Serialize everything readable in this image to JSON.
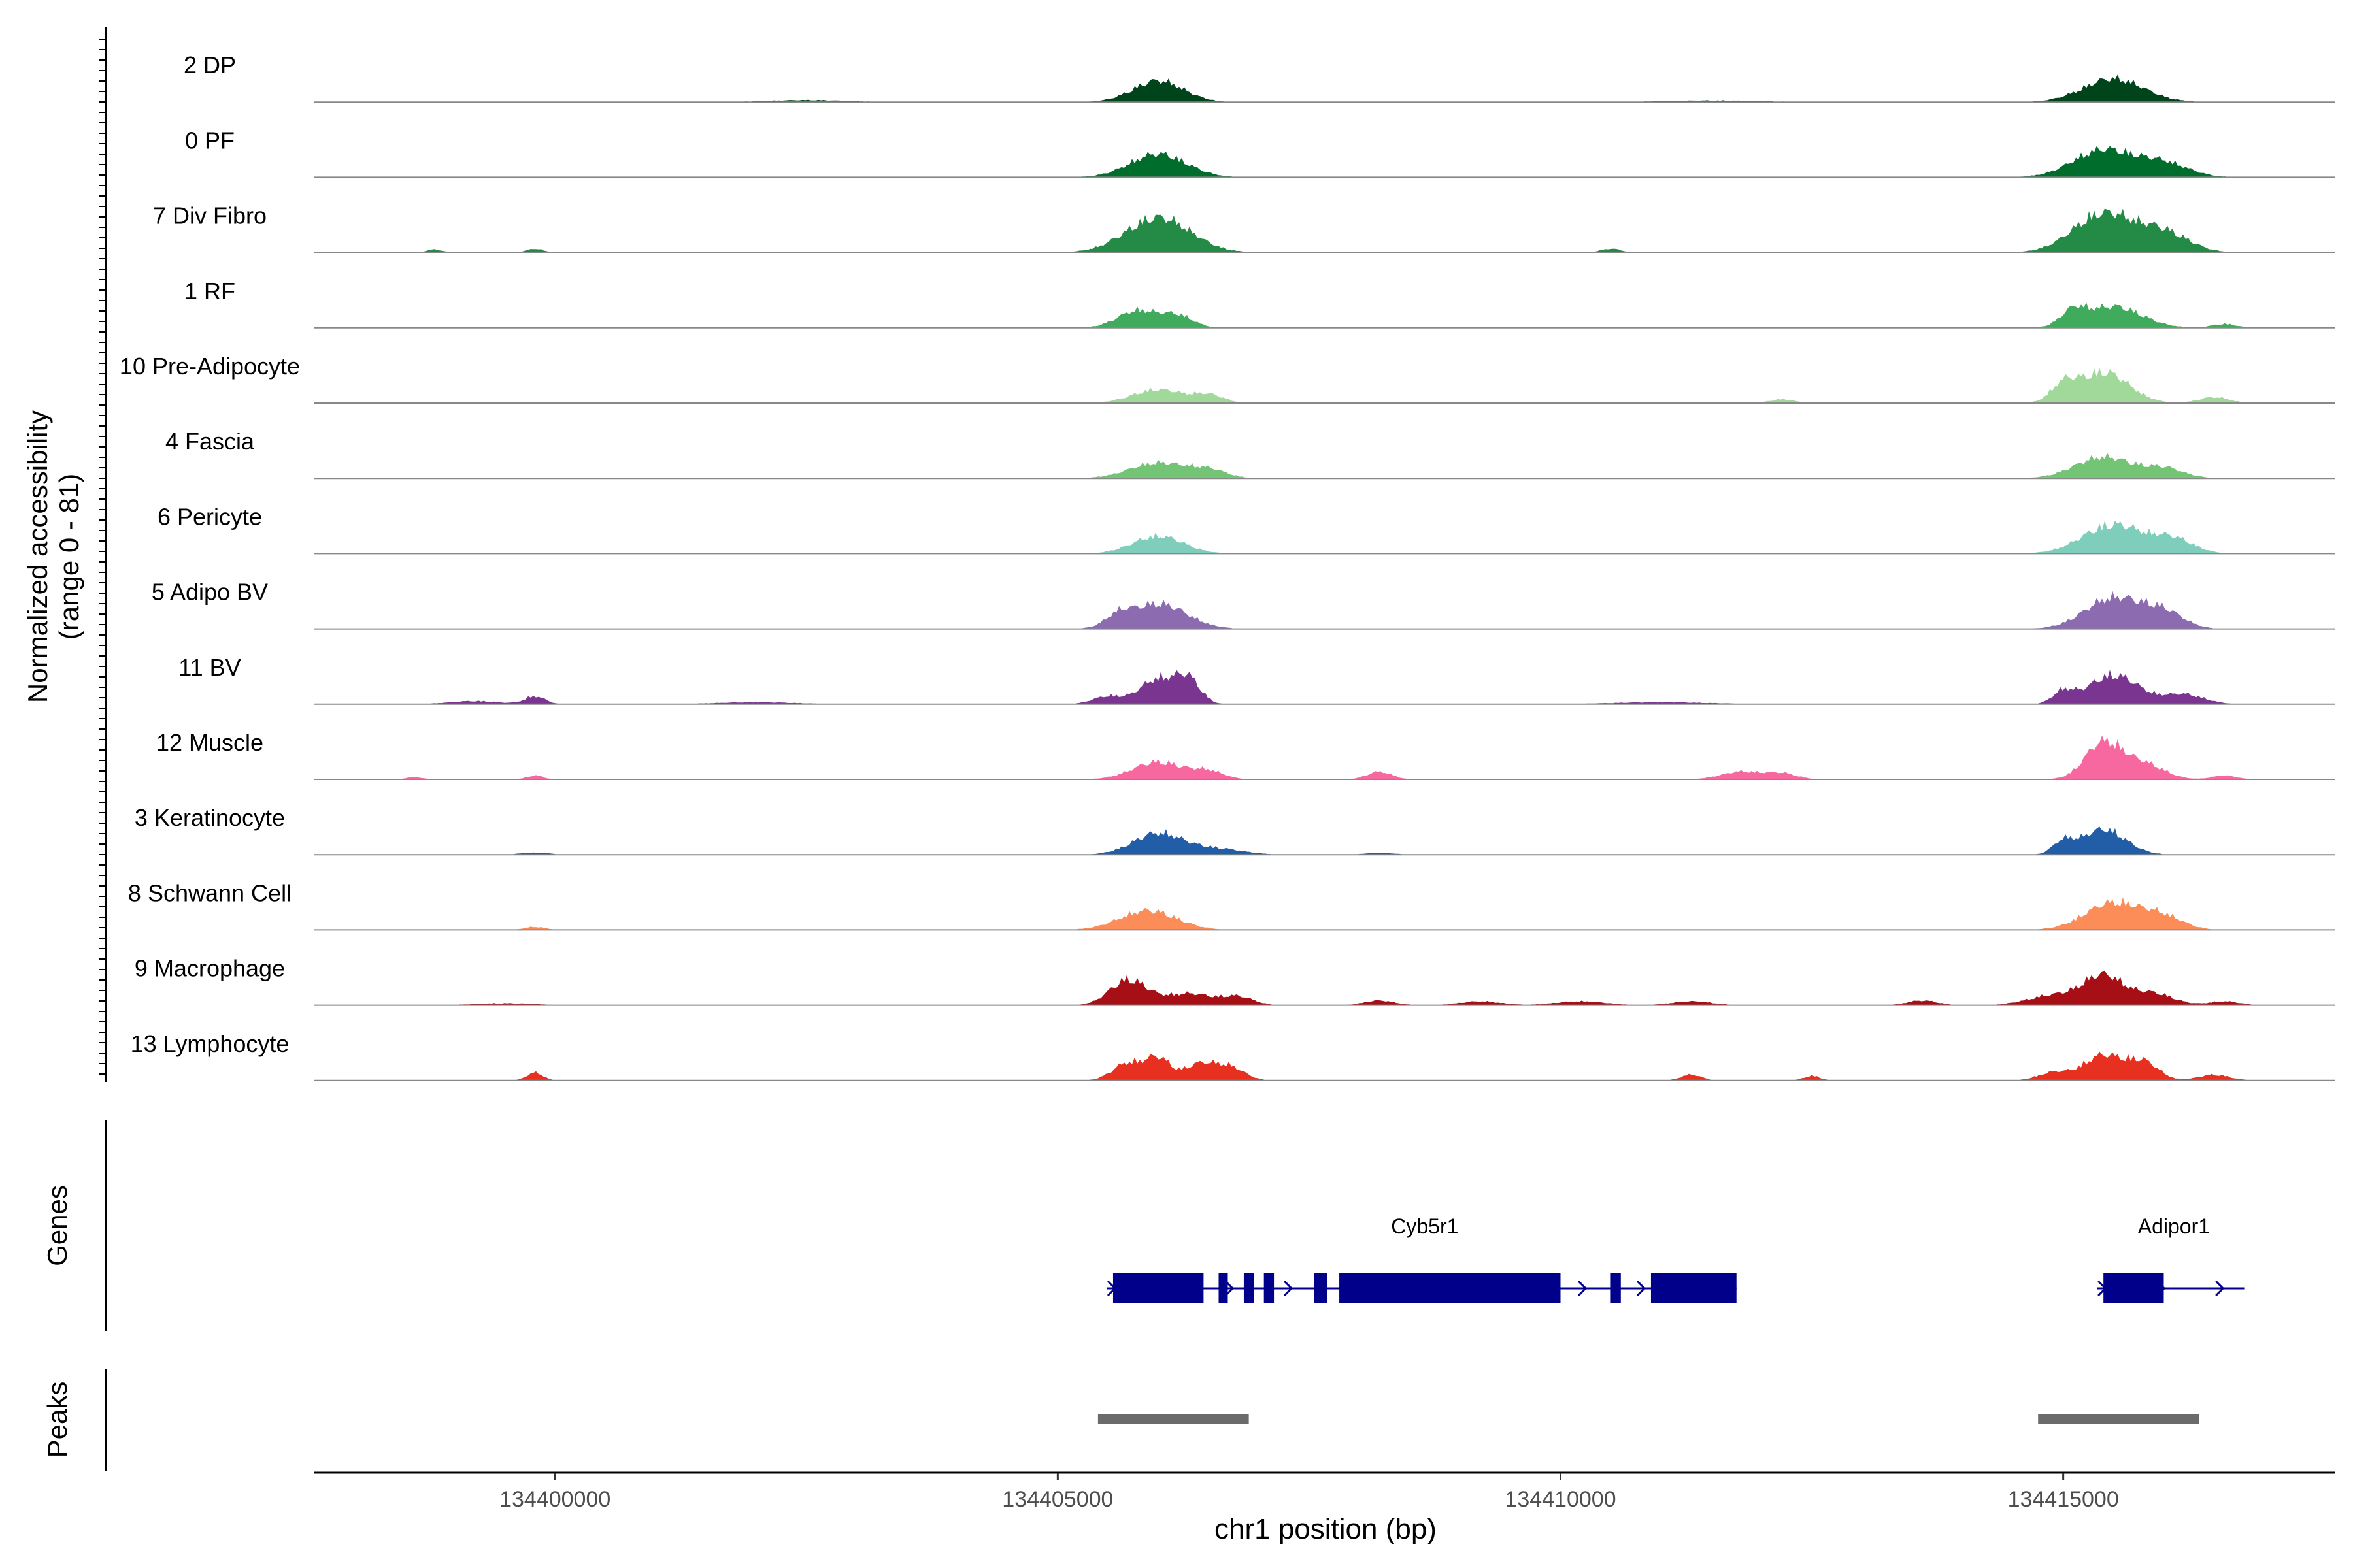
{
  "chart_data": {
    "type": "area",
    "subtype": "coverage-track",
    "ylabel_line1": "Normalized accessibility",
    "ylabel_line2": "(range 0 - 81)",
    "xlabel": "chr1 position (bp)",
    "xlim": [
      134397600,
      134417700
    ],
    "xticks": [
      134400000,
      134405000,
      134410000,
      134415000
    ],
    "xtick_labels": [
      "134400000",
      "134405000",
      "134410000",
      "134415000"
    ],
    "grid": false,
    "tracks": [
      {
        "label": "2 DP",
        "color": "#00441b",
        "peaks": [
          [
            134406000,
            0.55,
            250
          ],
          [
            134415500,
            0.6,
            300
          ],
          [
            134402500,
            0.05,
            400
          ],
          [
            134411500,
            0.04,
            500
          ]
        ]
      },
      {
        "label": "0 PF",
        "color": "#006d2c",
        "peaks": [
          [
            134406000,
            0.6,
            280
          ],
          [
            134415400,
            0.7,
            300
          ],
          [
            134416000,
            0.35,
            250
          ]
        ]
      },
      {
        "label": "7 Div Fibro",
        "color": "#238b45",
        "peaks": [
          [
            134406000,
            0.9,
            320
          ],
          [
            134415400,
            1.0,
            300
          ],
          [
            134416000,
            0.5,
            250
          ],
          [
            134398800,
            0.08,
            80
          ],
          [
            134399800,
            0.1,
            80
          ],
          [
            134410500,
            0.1,
            100
          ]
        ]
      },
      {
        "label": "1 RF",
        "color": "#41ab5d",
        "peaks": [
          [
            134405800,
            0.45,
            200
          ],
          [
            134406200,
            0.3,
            150
          ],
          [
            134415500,
            0.55,
            280
          ],
          [
            134415100,
            0.35,
            120
          ],
          [
            134416600,
            0.1,
            120
          ]
        ]
      },
      {
        "label": "10 Pre-Adipocyte",
        "color": "#a1d99b",
        "peaks": [
          [
            134406000,
            0.35,
            250
          ],
          [
            134406500,
            0.2,
            150
          ],
          [
            134415400,
            0.8,
            250
          ],
          [
            134415000,
            0.4,
            120
          ],
          [
            134416500,
            0.15,
            150
          ],
          [
            134412200,
            0.1,
            120
          ]
        ]
      },
      {
        "label": "4 Fascia",
        "color": "#74c476",
        "peaks": [
          [
            134406000,
            0.4,
            280
          ],
          [
            134406500,
            0.2,
            180
          ],
          [
            134415400,
            0.55,
            280
          ],
          [
            134416000,
            0.25,
            200
          ]
        ]
      },
      {
        "label": "6 Pericyte",
        "color": "#7fcdbb",
        "peaks": [
          [
            134406000,
            0.45,
            250
          ],
          [
            134415500,
            0.75,
            300
          ],
          [
            134416100,
            0.35,
            200
          ]
        ]
      },
      {
        "label": "5 Adipo BV",
        "color": "#8c6bb1",
        "peaks": [
          [
            134406000,
            0.65,
            280
          ],
          [
            134405600,
            0.25,
            120
          ],
          [
            134415500,
            0.8,
            280
          ],
          [
            134416000,
            0.4,
            200
          ]
        ]
      },
      {
        "label": "11 BV",
        "color": "#7a3591",
        "peaks": [
          [
            134406000,
            0.65,
            180
          ],
          [
            134406300,
            0.6,
            120
          ],
          [
            134405500,
            0.2,
            150
          ],
          [
            134415500,
            0.75,
            250
          ],
          [
            134415000,
            0.3,
            100
          ],
          [
            134416200,
            0.25,
            200
          ],
          [
            134399800,
            0.2,
            100
          ],
          [
            134399200,
            0.08,
            250
          ],
          [
            134402000,
            0.05,
            400
          ],
          [
            134411000,
            0.05,
            500
          ]
        ]
      },
      {
        "label": "12 Muscle",
        "color": "#f768a1",
        "peaks": [
          [
            134406000,
            0.45,
            250
          ],
          [
            134406500,
            0.2,
            150
          ],
          [
            134415400,
            0.95,
            180
          ],
          [
            134415800,
            0.4,
            200
          ],
          [
            134408200,
            0.2,
            120
          ],
          [
            134411800,
            0.2,
            200
          ],
          [
            134412200,
            0.15,
            150
          ],
          [
            134399800,
            0.1,
            80
          ],
          [
            134398600,
            0.06,
            80
          ],
          [
            134416600,
            0.1,
            120
          ]
        ]
      },
      {
        "label": "3 Keratinocyte",
        "color": "#225ea8",
        "peaks": [
          [
            134406000,
            0.55,
            250
          ],
          [
            134406600,
            0.15,
            250
          ],
          [
            134415400,
            0.65,
            220
          ],
          [
            134415000,
            0.3,
            100
          ],
          [
            134399800,
            0.05,
            150
          ],
          [
            134408200,
            0.05,
            150
          ]
        ]
      },
      {
        "label": "8 Schwann Cell",
        "color": "#fc8d59",
        "peaks": [
          [
            134405900,
            0.5,
            280
          ],
          [
            134415500,
            0.7,
            280
          ],
          [
            134416000,
            0.3,
            200
          ],
          [
            134399800,
            0.08,
            100
          ]
        ]
      },
      {
        "label": "9 Macrophage",
        "color": "#a50f15",
        "peaks": [
          [
            134405700,
            0.65,
            180
          ],
          [
            134406300,
            0.3,
            250
          ],
          [
            134406800,
            0.2,
            150
          ],
          [
            134415400,
            0.75,
            200
          ],
          [
            134414900,
            0.25,
            250
          ],
          [
            134415900,
            0.3,
            200
          ],
          [
            134408200,
            0.12,
            150
          ],
          [
            134409200,
            0.1,
            200
          ],
          [
            134410200,
            0.1,
            250
          ],
          [
            134411300,
            0.1,
            200
          ],
          [
            134413600,
            0.12,
            150
          ],
          [
            134416600,
            0.1,
            150
          ],
          [
            134399500,
            0.05,
            300
          ]
        ]
      },
      {
        "label": "13 Lymphocyte",
        "color": "#e7301f",
        "peaks": [
          [
            134405700,
            0.45,
            150
          ],
          [
            134406000,
            0.55,
            120
          ],
          [
            134406400,
            0.4,
            150
          ],
          [
            134406700,
            0.35,
            150
          ],
          [
            134415400,
            0.65,
            200
          ],
          [
            134415800,
            0.45,
            150
          ],
          [
            134414900,
            0.2,
            150
          ],
          [
            134399800,
            0.2,
            80
          ],
          [
            134411300,
            0.15,
            100
          ],
          [
            134412500,
            0.12,
            80
          ],
          [
            134416500,
            0.15,
            150
          ]
        ]
      }
    ],
    "genes_label": "Genes",
    "genes": [
      {
        "name": "Cyb5r1",
        "strand": "+",
        "start": 134405550,
        "end": 134411750,
        "exons": [
          [
            134405550,
            134406450
          ],
          [
            134406600,
            134406680
          ],
          [
            134406850,
            134406950
          ],
          [
            134407050,
            134407150
          ],
          [
            134407550,
            134407680
          ],
          [
            134407800,
            134410000
          ],
          [
            134410500,
            134410600
          ],
          [
            134410900,
            134411750
          ]
        ]
      },
      {
        "name": "Adipor1",
        "strand": "+",
        "start": 134415400,
        "end": 134416800,
        "exons": [
          [
            134415400,
            134416000
          ]
        ]
      }
    ],
    "peaks_label": "Peaks",
    "peak_regions": [
      [
        134405400,
        134406900
      ],
      [
        134414750,
        134416350
      ]
    ]
  }
}
